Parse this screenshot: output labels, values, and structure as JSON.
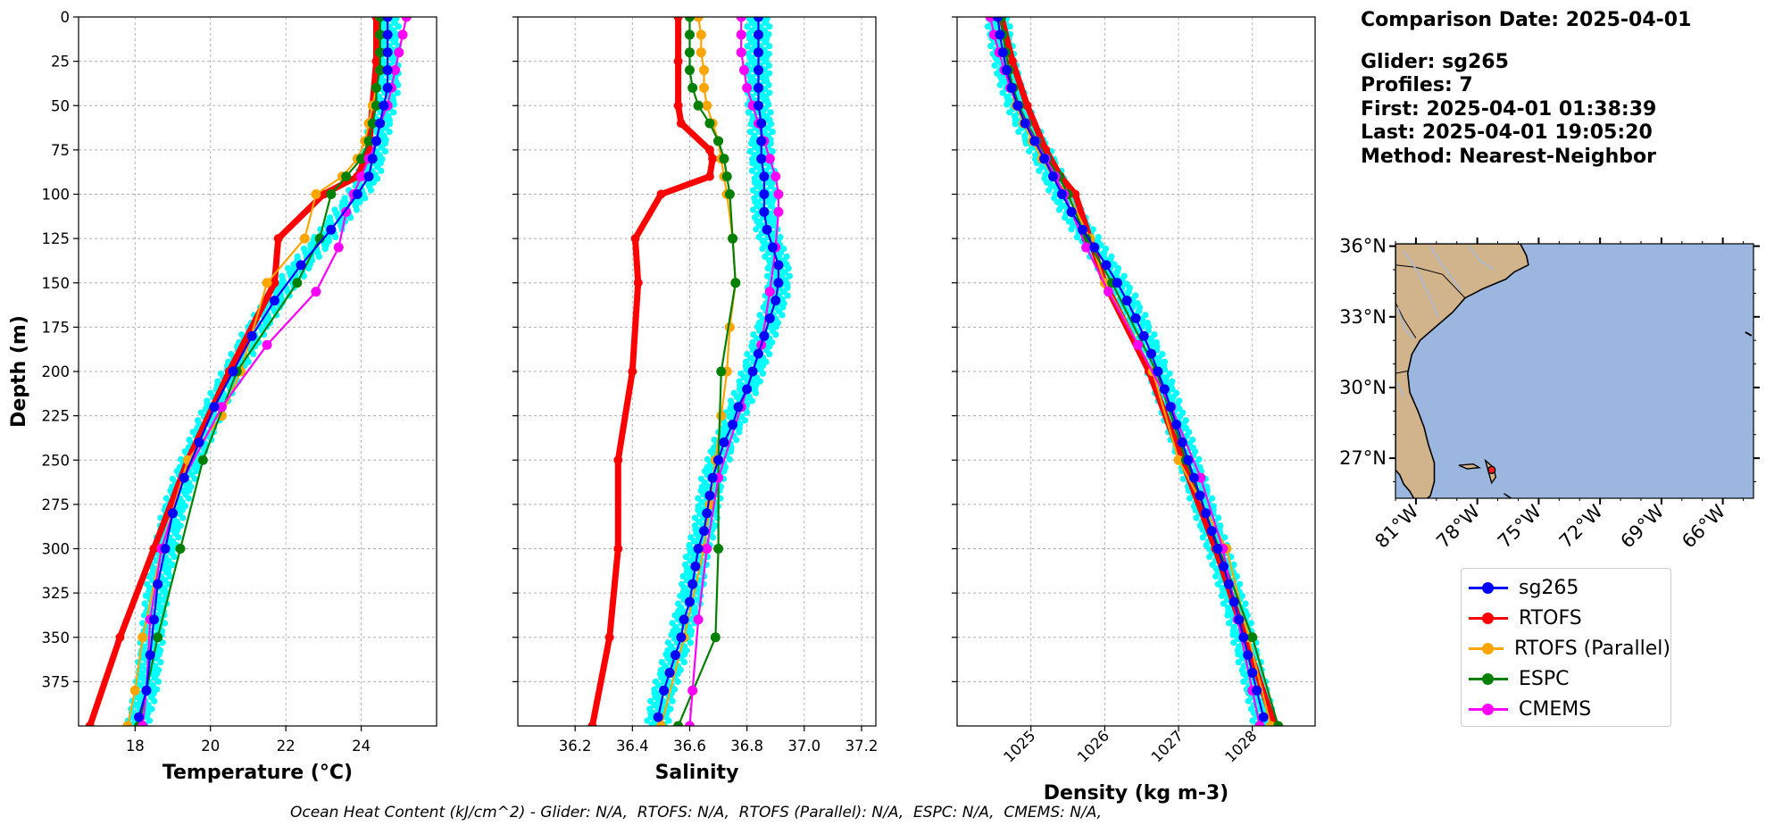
{
  "info": {
    "comparison_date": "Comparison Date: 2025-04-01",
    "glider": "Glider: sg265",
    "profiles": "Profiles: 7",
    "first": "First: 2025-04-01 01:38:39",
    "last": "Last: 2025-04-01 19:05:20",
    "method": "Method: Nearest-Neighbor"
  },
  "footer": "Ocean Heat Content (kJ/cm^2) - Glider: N/A,  RTOFS: N/A,  RTOFS (Parallel): N/A,  ESPC: N/A,  CMEMS: N/A,",
  "colors": {
    "sg265": "#0000ff",
    "RTOFS": "#ff0000",
    "RTOFS (Parallel)": "#ffa500",
    "ESPC": "#008000",
    "CMEMS": "#ff00ff",
    "glider_raw": "#00ffff",
    "land": "#d2b48c",
    "ocean": "#9bb7e0"
  },
  "legend": [
    {
      "label": "sg265",
      "color": "#0000ff"
    },
    {
      "label": "RTOFS",
      "color": "#ff0000"
    },
    {
      "label": "RTOFS (Parallel)",
      "color": "#ffa500"
    },
    {
      "label": "ESPC",
      "color": "#008000"
    },
    {
      "label": "CMEMS",
      "color": "#ff00ff"
    }
  ],
  "chart_data": [
    {
      "type": "line",
      "xlabel": "Temperature (°C)",
      "ylabel": "Depth (m)",
      "xlim": [
        16.5,
        26
      ],
      "ylim": [
        400,
        0
      ],
      "xticks": [
        18,
        20,
        22,
        24
      ],
      "yticks": [
        0,
        25,
        50,
        75,
        100,
        125,
        150,
        175,
        200,
        225,
        250,
        275,
        300,
        325,
        350,
        375
      ],
      "grid": true,
      "series": [
        {
          "name": "sg265",
          "depth": [
            0,
            10,
            20,
            30,
            40,
            50,
            60,
            70,
            80,
            90,
            100,
            120,
            140,
            160,
            180,
            200,
            220,
            240,
            260,
            280,
            300,
            320,
            340,
            360,
            380,
            395
          ],
          "values": [
            24.7,
            24.7,
            24.7,
            24.7,
            24.7,
            24.6,
            24.5,
            24.4,
            24.3,
            24.2,
            23.9,
            23.2,
            22.4,
            21.7,
            21.1,
            20.6,
            20.1,
            19.7,
            19.3,
            19.0,
            18.8,
            18.6,
            18.5,
            18.4,
            18.3,
            18.1
          ]
        },
        {
          "name": "RTOFS",
          "depth": [
            0,
            25,
            50,
            75,
            90,
            100,
            125,
            150,
            200,
            250,
            300,
            350,
            400
          ],
          "values": [
            24.4,
            24.4,
            24.3,
            24.2,
            23.9,
            23.0,
            21.8,
            21.7,
            20.5,
            19.4,
            18.5,
            17.6,
            16.8
          ]
        },
        {
          "name": "RTOFS (Parallel)",
          "depth": [
            0,
            10,
            20,
            30,
            40,
            50,
            60,
            70,
            80,
            90,
            100,
            125,
            150,
            200,
            225,
            250,
            300,
            350,
            380,
            400
          ],
          "values": [
            24.5,
            24.5,
            24.5,
            24.5,
            24.4,
            24.3,
            24.2,
            24.1,
            23.9,
            23.5,
            22.8,
            22.5,
            21.5,
            20.8,
            20.3,
            19.4,
            18.7,
            18.2,
            18.0,
            17.8
          ]
        },
        {
          "name": "ESPC",
          "depth": [
            0,
            10,
            20,
            30,
            40,
            50,
            60,
            70,
            80,
            90,
            100,
            125,
            150,
            200,
            250,
            300,
            350,
            400
          ],
          "values": [
            24.5,
            24.5,
            24.5,
            24.5,
            24.4,
            24.4,
            24.3,
            24.2,
            24.0,
            23.6,
            23.2,
            22.9,
            22.3,
            20.7,
            19.8,
            19.2,
            18.6,
            18.1
          ]
        },
        {
          "name": "CMEMS",
          "depth": [
            0,
            10,
            20,
            30,
            40,
            50,
            60,
            70,
            80,
            90,
            100,
            110,
            130,
            155,
            185,
            220,
            260,
            300,
            340,
            380,
            400
          ],
          "values": [
            25.2,
            25.1,
            25.0,
            24.9,
            24.8,
            24.7,
            24.5,
            24.4,
            24.2,
            24.0,
            23.8,
            23.6,
            23.4,
            22.8,
            21.5,
            20.3,
            19.3,
            18.7,
            18.4,
            18.3,
            18.2
          ]
        }
      ]
    },
    {
      "type": "line",
      "xlabel": "Salinity",
      "ylabel": "",
      "xlim": [
        36.0,
        37.25
      ],
      "ylim": [
        400,
        0
      ],
      "xticks": [
        36.2,
        36.4,
        36.6,
        36.8,
        37.0,
        37.2
      ],
      "grid": true,
      "series": [
        {
          "name": "sg265",
          "depth": [
            0,
            10,
            20,
            30,
            40,
            50,
            60,
            70,
            80,
            90,
            100,
            110,
            120,
            130,
            140,
            150,
            160,
            170,
            180,
            190,
            200,
            210,
            220,
            230,
            240,
            250,
            260,
            270,
            280,
            290,
            300,
            310,
            320,
            330,
            340,
            350,
            360,
            370,
            380,
            395
          ],
          "values": [
            36.84,
            36.84,
            36.84,
            36.84,
            36.84,
            36.84,
            36.85,
            36.85,
            36.85,
            36.86,
            36.86,
            36.86,
            36.87,
            36.89,
            36.91,
            36.91,
            36.9,
            36.88,
            36.86,
            36.84,
            36.82,
            36.8,
            36.77,
            36.75,
            36.72,
            36.7,
            36.68,
            36.67,
            36.66,
            36.65,
            36.63,
            36.62,
            36.61,
            36.6,
            36.58,
            36.57,
            36.55,
            36.53,
            36.51,
            36.49
          ]
        },
        {
          "name": "RTOFS",
          "depth": [
            0,
            25,
            50,
            60,
            75,
            80,
            90,
            100,
            125,
            150,
            200,
            250,
            300,
            350,
            400
          ],
          "values": [
            36.56,
            36.56,
            36.56,
            36.57,
            36.67,
            36.68,
            36.67,
            36.5,
            36.41,
            36.42,
            36.4,
            36.35,
            36.35,
            36.32,
            36.26
          ]
        },
        {
          "name": "RTOFS (Parallel)",
          "depth": [
            0,
            10,
            20,
            30,
            40,
            50,
            60,
            70,
            80,
            90,
            100,
            125,
            150,
            175,
            200,
            225,
            250,
            275,
            300,
            350,
            400
          ],
          "values": [
            36.63,
            36.64,
            36.64,
            36.65,
            36.65,
            36.66,
            36.68,
            36.7,
            36.71,
            36.72,
            36.73,
            36.75,
            36.76,
            36.74,
            36.73,
            36.71,
            36.69,
            36.67,
            36.65,
            36.58,
            36.5
          ]
        },
        {
          "name": "ESPC",
          "depth": [
            0,
            10,
            20,
            30,
            40,
            50,
            60,
            70,
            80,
            90,
            100,
            125,
            150,
            200,
            250,
            300,
            350,
            400
          ],
          "values": [
            36.6,
            36.6,
            36.6,
            36.6,
            36.61,
            36.63,
            36.67,
            36.7,
            36.72,
            36.73,
            36.74,
            36.75,
            36.76,
            36.71,
            36.7,
            36.7,
            36.69,
            36.56
          ]
        },
        {
          "name": "CMEMS",
          "depth": [
            0,
            10,
            20,
            30,
            40,
            50,
            60,
            70,
            80,
            90,
            100,
            110,
            130,
            155,
            185,
            220,
            260,
            300,
            340,
            380,
            400
          ],
          "values": [
            36.78,
            36.78,
            36.78,
            36.79,
            36.8,
            36.82,
            36.84,
            36.86,
            36.88,
            36.9,
            36.91,
            36.91,
            36.9,
            36.88,
            36.85,
            36.78,
            36.7,
            36.66,
            36.63,
            36.61,
            36.6
          ]
        }
      ]
    },
    {
      "type": "line",
      "xlabel": "Density (kg m-3)",
      "ylabel": "",
      "xlim": [
        1024.0,
        1028.85
      ],
      "ylim": [
        400,
        0
      ],
      "xticks": [
        1025,
        1026,
        1027,
        1028
      ],
      "grid": true,
      "series": [
        {
          "name": "sg265",
          "depth": [
            0,
            10,
            20,
            30,
            40,
            50,
            60,
            70,
            80,
            90,
            100,
            110,
            120,
            130,
            140,
            150,
            160,
            170,
            180,
            190,
            200,
            210,
            220,
            230,
            240,
            250,
            260,
            270,
            280,
            290,
            300,
            310,
            320,
            330,
            340,
            350,
            360,
            370,
            380,
            395
          ],
          "values": [
            1024.55,
            1024.58,
            1024.62,
            1024.67,
            1024.74,
            1024.82,
            1024.92,
            1025.05,
            1025.18,
            1025.3,
            1025.42,
            1025.55,
            1025.7,
            1025.86,
            1026.02,
            1026.17,
            1026.3,
            1026.42,
            1026.53,
            1026.63,
            1026.72,
            1026.81,
            1026.89,
            1026.97,
            1027.05,
            1027.13,
            1027.21,
            1027.29,
            1027.37,
            1027.45,
            1027.53,
            1027.61,
            1027.68,
            1027.75,
            1027.82,
            1027.88,
            1027.94,
            1028.0,
            1028.06,
            1028.15
          ]
        },
        {
          "name": "RTOFS",
          "depth": [
            0,
            25,
            50,
            75,
            90,
            100,
            125,
            150,
            200,
            250,
            300,
            350,
            400
          ],
          "values": [
            1024.6,
            1024.75,
            1024.95,
            1025.2,
            1025.4,
            1025.6,
            1025.8,
            1026.0,
            1026.6,
            1027.05,
            1027.5,
            1027.9,
            1028.3
          ]
        },
        {
          "name": "RTOFS (Parallel)",
          "depth": [
            0,
            10,
            20,
            30,
            40,
            50,
            60,
            70,
            80,
            90,
            100,
            125,
            150,
            200,
            250,
            300,
            350,
            400
          ],
          "values": [
            1024.55,
            1024.58,
            1024.62,
            1024.67,
            1024.72,
            1024.8,
            1024.9,
            1025.02,
            1025.15,
            1025.3,
            1025.5,
            1025.8,
            1026.0,
            1026.65,
            1027.0,
            1027.65,
            1027.95,
            1028.25
          ]
        },
        {
          "name": "ESPC",
          "depth": [
            0,
            10,
            20,
            30,
            40,
            50,
            60,
            70,
            80,
            90,
            100,
            125,
            150,
            200,
            250,
            300,
            350,
            400
          ],
          "values": [
            1024.6,
            1024.62,
            1024.66,
            1024.7,
            1024.76,
            1024.84,
            1024.95,
            1025.08,
            1025.22,
            1025.38,
            1025.5,
            1025.75,
            1026.1,
            1026.7,
            1027.1,
            1027.55,
            1028.0,
            1028.35
          ]
        },
        {
          "name": "CMEMS",
          "depth": [
            0,
            10,
            20,
            30,
            40,
            50,
            60,
            70,
            80,
            90,
            100,
            110,
            130,
            155,
            185,
            220,
            260,
            300,
            340,
            380,
            400
          ],
          "values": [
            1024.45,
            1024.5,
            1024.57,
            1024.64,
            1024.72,
            1024.82,
            1024.93,
            1025.06,
            1025.2,
            1025.33,
            1025.45,
            1025.55,
            1025.75,
            1026.05,
            1026.45,
            1026.9,
            1027.3,
            1027.6,
            1027.8,
            1028.0,
            1028.1
          ]
        }
      ]
    },
    {
      "type": "map",
      "xticks": [
        "81°W",
        "78°W",
        "75°W",
        "72°W",
        "69°W",
        "66°W"
      ],
      "yticks": [
        "36°N",
        "33°N",
        "30°N",
        "27°N"
      ],
      "xlim": [
        -82,
        -64.5
      ],
      "ylim": [
        25.3,
        36.1
      ],
      "marker": {
        "lon": -77.3,
        "lat": 26.5
      }
    }
  ]
}
